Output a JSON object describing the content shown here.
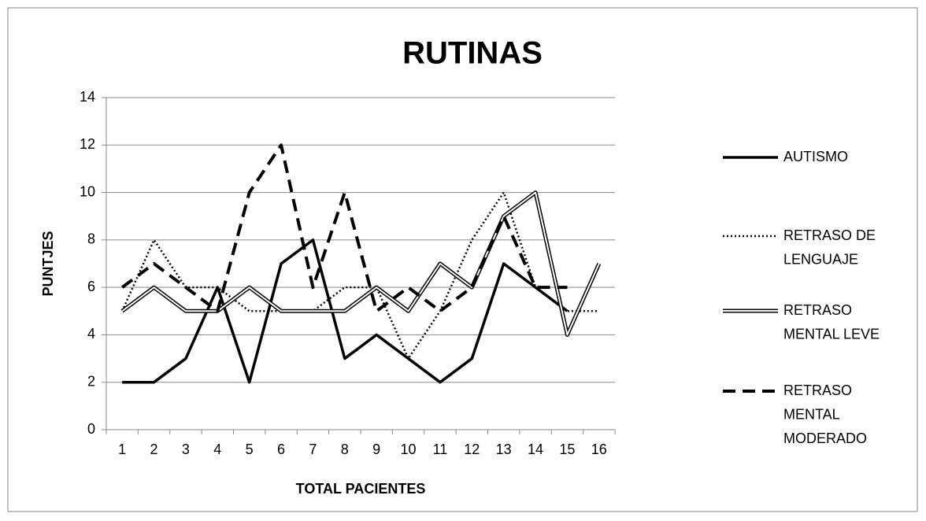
{
  "chart_data": {
    "type": "line",
    "title": "RUTINAS",
    "x_label": "TOTAL PACIENTES",
    "y_label": "PUNTJES",
    "categories": [
      "1",
      "2",
      "3",
      "4",
      "5",
      "6",
      "7",
      "8",
      "9",
      "10",
      "11",
      "12",
      "13",
      "14",
      "15",
      "16"
    ],
    "ylim": [
      0,
      14
    ],
    "yticks": [
      0,
      2,
      4,
      6,
      8,
      10,
      12,
      14
    ],
    "grid": true,
    "legend": "right",
    "series": [
      {
        "name": "AUTISMO",
        "color": "#000000",
        "style": "solid",
        "values": [
          2,
          2,
          3,
          6,
          2,
          7,
          8,
          3,
          4,
          3,
          2,
          3,
          7,
          6,
          5,
          null
        ]
      },
      {
        "name": "RETRASO DE LENGUAJE",
        "color": "#000000",
        "style": "dotted",
        "values": [
          5,
          8,
          6,
          6,
          5,
          5,
          5,
          6,
          6,
          3,
          5,
          8,
          10,
          6,
          5,
          5
        ]
      },
      {
        "name": "RETRASO MENTAL LEVE",
        "color": "#000000",
        "style": "double",
        "values": [
          5,
          6,
          5,
          5,
          6,
          5,
          5,
          5,
          6,
          5,
          7,
          6,
          9,
          10,
          4,
          7
        ]
      },
      {
        "name": "RETRASO MENTAL MODERADO",
        "color": "#000000",
        "style": "dashed",
        "values": [
          6,
          7,
          6,
          5,
          10,
          12,
          6,
          10,
          5,
          6,
          5,
          6,
          9,
          6,
          6,
          null
        ]
      }
    ]
  }
}
